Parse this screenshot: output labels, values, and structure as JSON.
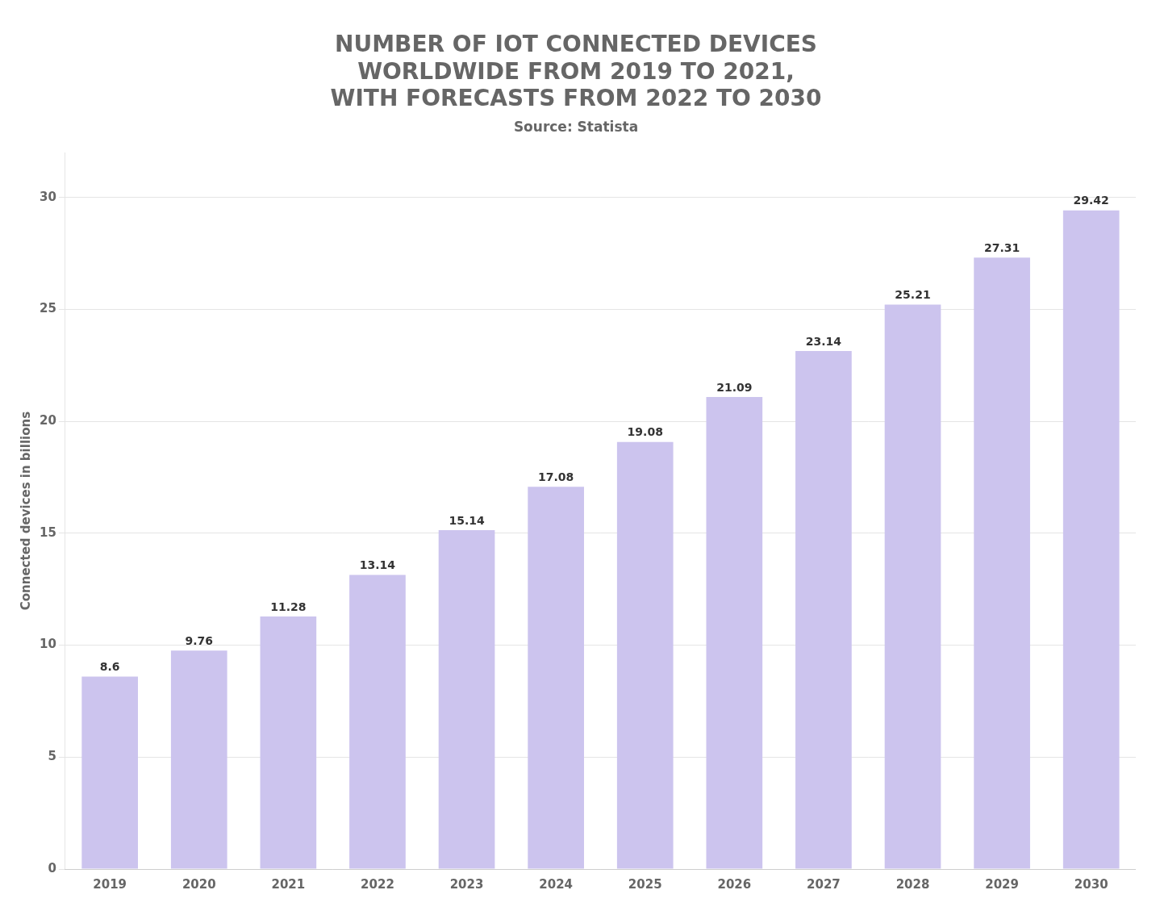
{
  "chart_data": {
    "type": "bar",
    "title": [
      "NUMBER OF IOT CONNECTED DEVICES",
      "WORLDWIDE FROM 2019 TO 2021,",
      "WITH FORECASTS FROM 2022 TO 2030"
    ],
    "subtitle": "Source: Statista",
    "categories": [
      "2019",
      "2020",
      "2021",
      "2022",
      "2023",
      "2024",
      "2025",
      "2026",
      "2027",
      "2028",
      "2029",
      "2030"
    ],
    "values": [
      8.6,
      9.76,
      11.28,
      13.14,
      15.14,
      17.08,
      19.08,
      21.09,
      23.14,
      25.21,
      27.31,
      29.42
    ],
    "color": "#ccc4ee",
    "ylabel": "Connected devices in billions",
    "ylim": [
      0,
      32
    ],
    "yticks": [
      0,
      5,
      10,
      15,
      20,
      25,
      30
    ],
    "grid": true,
    "data_labels": true
  }
}
